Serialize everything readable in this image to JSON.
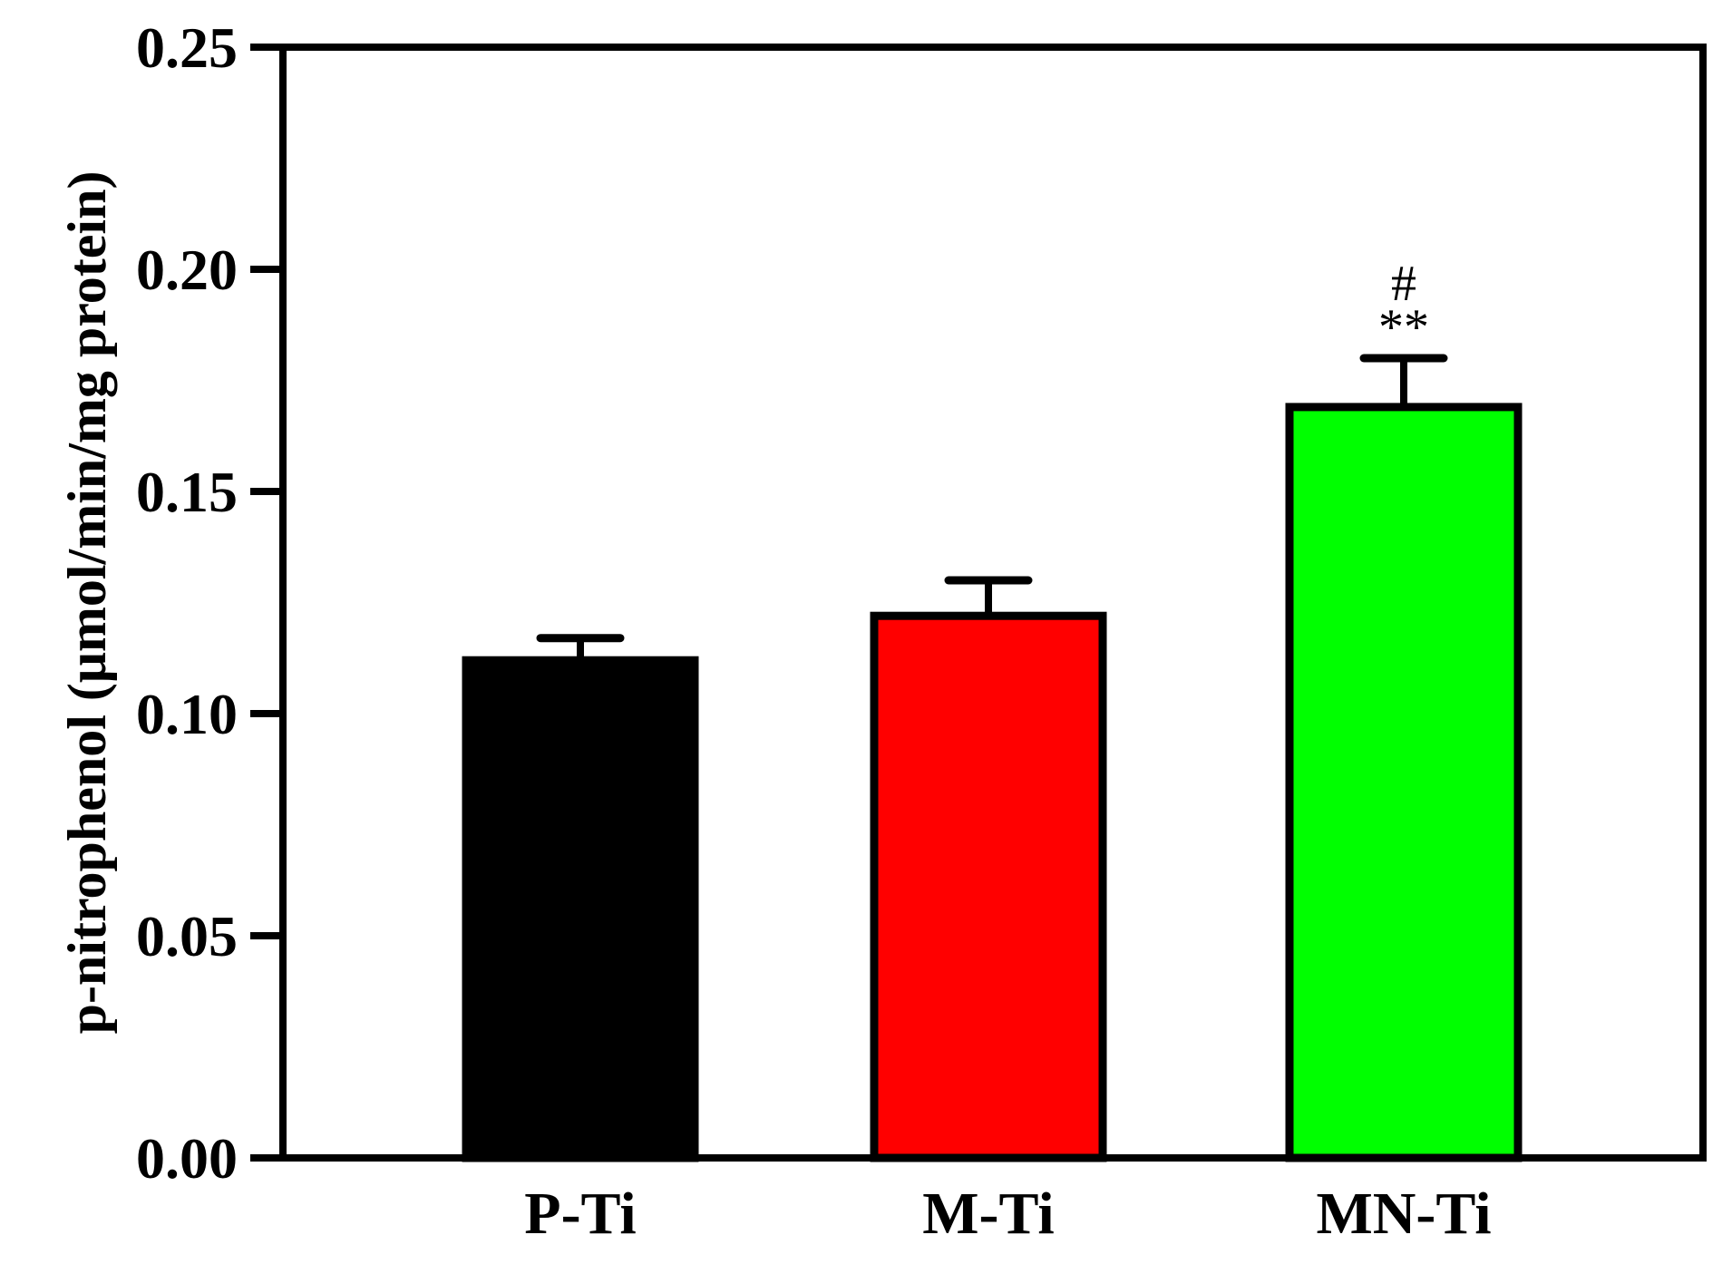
{
  "chart_data": {
    "type": "bar",
    "title": "",
    "xlabel": "",
    "ylabel": "p-nitrophenol (μmol/min/mg protein)",
    "ylim": [
      0,
      0.25
    ],
    "yticks": [
      "0.00",
      "0.05",
      "0.10",
      "0.15",
      "0.20",
      "0.25"
    ],
    "ytick_values": [
      0,
      0.05,
      0.1,
      0.15,
      0.2,
      0.25
    ],
    "grid": false,
    "legend": "none",
    "categories": [
      "P-Ti",
      "M-Ti",
      "MN-Ti"
    ],
    "values": [
      0.112,
      0.122,
      0.169
    ],
    "errors": [
      0.005,
      0.008,
      0.011
    ],
    "colors": [
      "#000000",
      "#ff0000",
      "#00ff00"
    ],
    "annotations": [
      {
        "category": "MN-Ti",
        "lines": [
          "#",
          "**"
        ]
      }
    ]
  }
}
